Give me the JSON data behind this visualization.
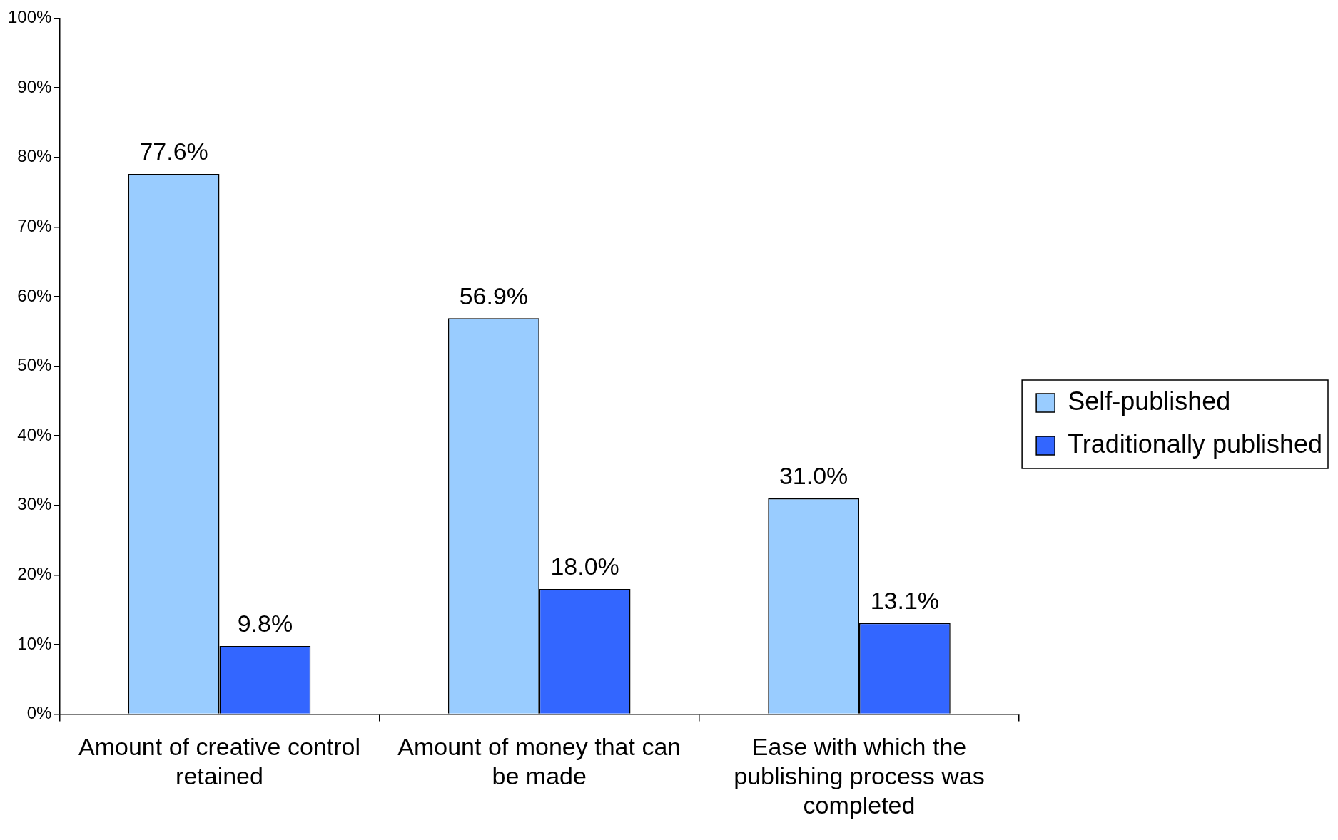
{
  "chart_data": {
    "type": "bar",
    "categories": [
      "Amount of creative control retained",
      "Amount of money that can be made",
      "Ease with which the publishing process was completed"
    ],
    "series": [
      {
        "name": "Self-published",
        "color": "#99ccff",
        "values": [
          77.6,
          56.9,
          31.0
        ],
        "value_labels": [
          "77.6%",
          "56.9%",
          "31.0%"
        ]
      },
      {
        "name": "Traditionally published",
        "color": "#3366ff",
        "values": [
          9.8,
          18.0,
          13.1
        ],
        "value_labels": [
          "9.8%",
          "18.0%",
          "13.1%"
        ]
      }
    ],
    "ylim": [
      0,
      100
    ],
    "yticks": [
      {
        "value": 0,
        "label": "0%"
      },
      {
        "value": 10,
        "label": "10%"
      },
      {
        "value": 20,
        "label": "20%"
      },
      {
        "value": 30,
        "label": "30%"
      },
      {
        "value": 40,
        "label": "40%"
      },
      {
        "value": 50,
        "label": "50%"
      },
      {
        "value": 60,
        "label": "60%"
      },
      {
        "value": 70,
        "label": "70%"
      },
      {
        "value": 80,
        "label": "80%"
      },
      {
        "value": 90,
        "label": "90%"
      },
      {
        "value": 100,
        "label": "100%"
      }
    ],
    "grid": false,
    "legend": "right"
  }
}
